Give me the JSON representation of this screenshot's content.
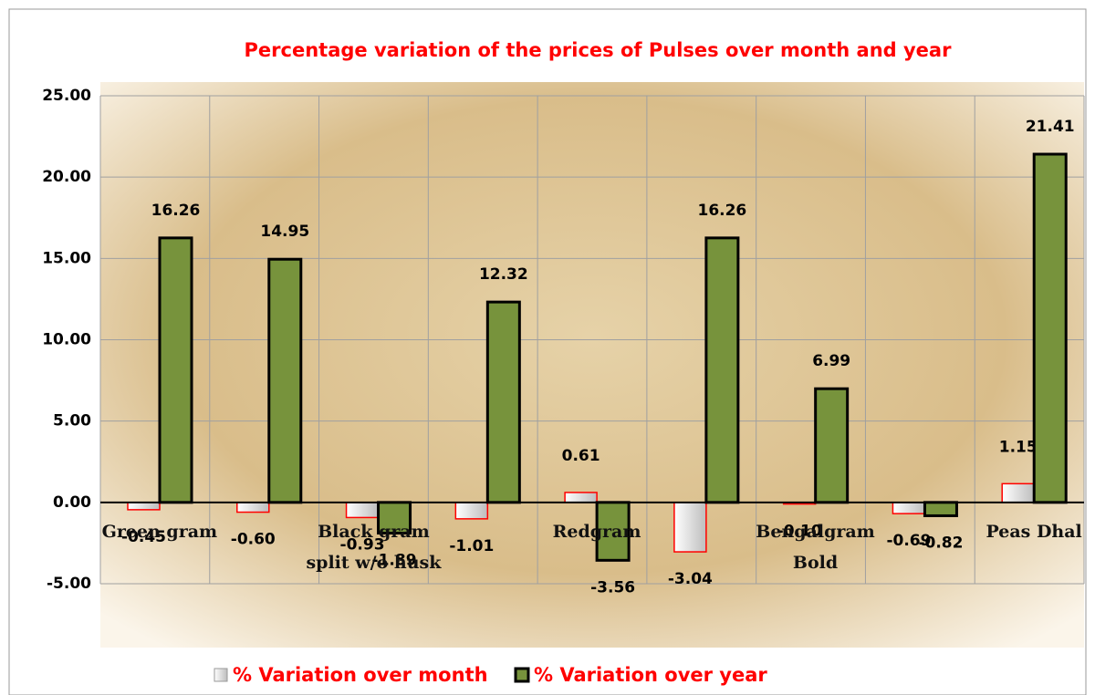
{
  "chart_data": {
    "type": "bar",
    "title": "Percentage variation of the prices of Pulses over month and year",
    "categories": [
      "Green gram",
      null,
      "Black gram split w/o husk",
      null,
      "Redgram",
      null,
      "Bengalgram Bold",
      null,
      "Peas Dhal"
    ],
    "series": [
      {
        "name": "% Variation over month",
        "color": "#e8e8e8",
        "edge": "#ff0000",
        "values": [
          -0.45,
          -0.6,
          -0.93,
          -1.01,
          0.61,
          -3.04,
          -0.1,
          -0.69,
          1.15
        ],
        "value_labels": [
          "-0.45",
          "-0.60",
          "-0.93",
          "-1.01",
          "0.61",
          "-3.04",
          "-0.10",
          "-0.69",
          "1.15"
        ]
      },
      {
        "name": "% Variation over year",
        "color": "#77933c",
        "edge": "#000000",
        "values": [
          16.26,
          14.95,
          -1.89,
          12.32,
          -3.56,
          16.26,
          6.99,
          -0.82,
          21.41
        ],
        "value_labels": [
          "16.26",
          "14.95",
          "-1.89",
          "12.32",
          "-3.56",
          "16.26",
          "6.99",
          "-0.82",
          "21.41"
        ]
      }
    ],
    "ylim": [
      -5,
      25
    ],
    "yticks": [
      {
        "value": -5,
        "label": "-5.00"
      },
      {
        "value": 0,
        "label": "0.00"
      },
      {
        "value": 5,
        "label": "5.00"
      },
      {
        "value": 10,
        "label": "10.00"
      },
      {
        "value": 15,
        "label": "15.00"
      },
      {
        "value": 20,
        "label": "20.00"
      },
      {
        "value": 25,
        "label": "25.00"
      }
    ],
    "grid": true
  }
}
